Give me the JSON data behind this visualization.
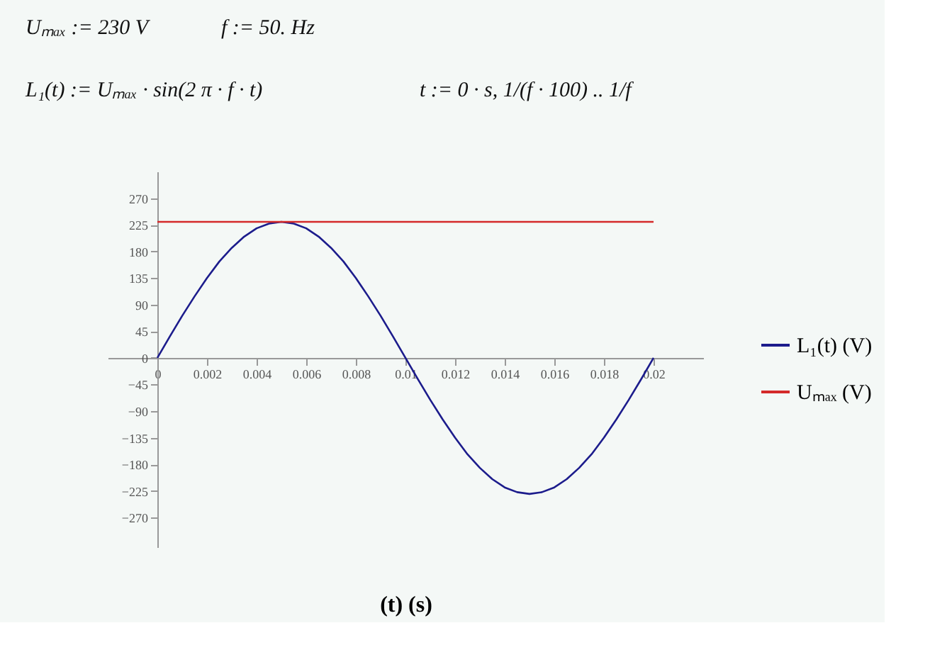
{
  "chart_data": {
    "type": "line",
    "annotations": [
      "Uₘₐₓ := 230 V",
      "f := 50. Hz",
      "L₁(t) := Uₘₐₓ · sin(2 π · f · t)",
      "t := 0 · s, 1/(f · 100) .. 1/f"
    ],
    "xlabel": "(t)  (s)",
    "series": [
      {
        "name": "L₁(t)  (V)",
        "color": "#1c1c8c",
        "x": [
          0,
          0.0005,
          0.001,
          0.0015,
          0.002,
          0.0025,
          0.003,
          0.0035,
          0.004,
          0.0045,
          0.005,
          0.0055,
          0.006,
          0.0065,
          0.007,
          0.0075,
          0.008,
          0.0085,
          0.009,
          0.0095,
          0.01,
          0.0105,
          0.011,
          0.0115,
          0.012,
          0.0125,
          0.013,
          0.0135,
          0.014,
          0.0145,
          0.015,
          0.0155,
          0.016,
          0.0165,
          0.017,
          0.0175,
          0.018,
          0.0185,
          0.019,
          0.0195,
          0.02
        ],
        "values": [
          0,
          36,
          71,
          104,
          135,
          163,
          186,
          205,
          219,
          227,
          230,
          227,
          219,
          205,
          186,
          163,
          135,
          104,
          71,
          36,
          0,
          -36,
          -71,
          -104,
          -135,
          -163,
          -186,
          -205,
          -219,
          -227,
          -230,
          -227,
          -219,
          -205,
          -186,
          -163,
          -135,
          -104,
          -71,
          -36,
          0
        ]
      },
      {
        "name": "Uₘₐₓ  (V)",
        "color": "#d42a2a",
        "x": [
          0,
          0.02
        ],
        "values": [
          230,
          230
        ]
      }
    ],
    "xlim": [
      -0.002,
      0.022
    ],
    "xticks": [
      0,
      0.002,
      0.004,
      0.006,
      0.008,
      0.01,
      0.012,
      0.014,
      0.016,
      0.018,
      0.02
    ],
    "ylim": [
      -320,
      315
    ],
    "yticks": [
      -270,
      -225,
      -180,
      -135,
      -90,
      -45,
      0,
      45,
      90,
      135,
      180,
      225,
      270
    ],
    "grid": false,
    "legend": "right",
    "line_style": "solid",
    "marker": "none"
  }
}
